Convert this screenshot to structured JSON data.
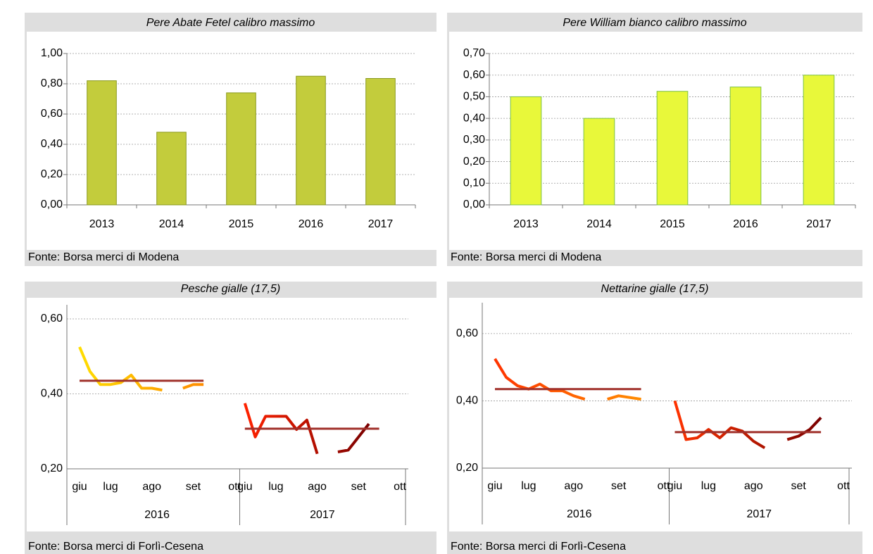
{
  "chart_data": [
    {
      "type": "bar",
      "title": "Pere Abate Fetel calibro massimo",
      "source": "Fonte: Borsa merci di Modena",
      "categories": [
        "2013",
        "2014",
        "2015",
        "2016",
        "2017"
      ],
      "values": [
        0.82,
        0.48,
        0.74,
        0.85,
        0.835
      ],
      "color": "#c3cc3c",
      "stroke": "#8a9a1e",
      "ylim": [
        0,
        1
      ],
      "yticks": [
        {
          "value": 0,
          "label": "0,00"
        },
        {
          "value": 0.2,
          "label": "0,20"
        },
        {
          "value": 0.4,
          "label": "0,40"
        },
        {
          "value": 0.6,
          "label": "0,60"
        },
        {
          "value": 0.8,
          "label": "0,80"
        },
        {
          "value": 1,
          "label": "1,00"
        }
      ],
      "grid": true
    },
    {
      "type": "bar",
      "title": "Pere William bianco calibro massimo",
      "source": "Fonte: Borsa merci di Modena",
      "categories": [
        "2013",
        "2014",
        "2015",
        "2016",
        "2017"
      ],
      "values": [
        0.5,
        0.4,
        0.525,
        0.545,
        0.6
      ],
      "color": "#e8f83a",
      "stroke": "#7cc043",
      "ylim": [
        0,
        0.7
      ],
      "yticks": [
        {
          "value": 0,
          "label": "0,00"
        },
        {
          "value": 0.1,
          "label": "0,10"
        },
        {
          "value": 0.2,
          "label": "0,20"
        },
        {
          "value": 0.3,
          "label": "0,30"
        },
        {
          "value": 0.4,
          "label": "0,40"
        },
        {
          "value": 0.5,
          "label": "0,50"
        },
        {
          "value": 0.6,
          "label": "0,60"
        },
        {
          "value": 0.7,
          "label": "0,70"
        }
      ],
      "grid": true
    },
    {
      "type": "line",
      "title": "Pesche gialle (17,5)",
      "source": "Fonte: Borsa merci di Forlì-Cesena",
      "categories": [
        "giu",
        null,
        null,
        "lug",
        null,
        null,
        null,
        "ago",
        null,
        null,
        null,
        "set",
        null,
        null,
        null,
        "ott",
        "giu",
        null,
        null,
        "lug",
        null,
        null,
        null,
        "ago",
        null,
        null,
        null,
        "set",
        null,
        null,
        null,
        "ott"
      ],
      "groups": [
        "2016",
        "2017"
      ],
      "series": [
        {
          "colors": [
            "#ffdd00",
            "#ff8c00"
          ],
          "values": [
            0.525,
            0.46,
            0.425,
            0.425,
            0.43,
            0.45,
            0.415,
            0.415,
            0.41,
            null,
            0.415,
            0.425,
            0.425,
            null,
            null,
            null,
            null,
            null,
            null,
            null,
            null,
            null,
            null,
            null,
            null,
            null,
            null,
            null,
            null,
            null,
            null,
            null
          ]
        },
        {
          "color": "#a0302a",
          "values": [
            0.435,
            0.435,
            0.435,
            0.435,
            0.435,
            0.435,
            0.435,
            0.435,
            0.435,
            0.435,
            0.435,
            0.435,
            0.435,
            null,
            null,
            null,
            null,
            null,
            null,
            null,
            null,
            null,
            null,
            null,
            null,
            null,
            null,
            null,
            null,
            null,
            null,
            null
          ]
        },
        {
          "colors": [
            "#ff2200",
            "#7a0000"
          ],
          "values": [
            null,
            null,
            null,
            null,
            null,
            null,
            null,
            null,
            null,
            null,
            null,
            null,
            null,
            null,
            null,
            null,
            0.375,
            0.285,
            0.34,
            0.34,
            0.34,
            0.305,
            0.33,
            0.24,
            null,
            0.245,
            0.25,
            0.285,
            0.32,
            null,
            null,
            null
          ]
        },
        {
          "color": "#a0302a",
          "values": [
            null,
            null,
            null,
            null,
            null,
            null,
            null,
            null,
            null,
            null,
            null,
            null,
            null,
            null,
            null,
            null,
            0.307,
            0.307,
            0.307,
            0.307,
            0.307,
            0.307,
            0.307,
            0.307,
            0.307,
            0.307,
            0.307,
            0.307,
            0.307,
            0.307,
            null,
            null
          ]
        }
      ],
      "ylim": [
        0.2,
        0.6
      ],
      "yticks": [
        {
          "value": 0.2,
          "label": "0,20"
        },
        {
          "value": 0.4,
          "label": "0,40"
        },
        {
          "value": 0.6,
          "label": "0,60"
        }
      ],
      "grid": true
    },
    {
      "type": "line",
      "title": "Nettarine gialle (17,5)",
      "source": "Fonte: Borsa merci di Forlì-Cesena",
      "categories": [
        "giu",
        null,
        null,
        "lug",
        null,
        null,
        null,
        "ago",
        null,
        null,
        null,
        "set",
        null,
        null,
        null,
        "ott",
        "giu",
        null,
        null,
        "lug",
        null,
        null,
        null,
        "ago",
        null,
        null,
        null,
        "set",
        null,
        null,
        null,
        "ott"
      ],
      "groups": [
        "2016",
        "2017"
      ],
      "series": [
        {
          "colors": [
            "#ff3300",
            "#ff8c00"
          ],
          "values": [
            0.525,
            0.47,
            0.445,
            0.435,
            0.45,
            0.43,
            0.43,
            0.415,
            0.405,
            null,
            0.405,
            0.415,
            0.41,
            0.405,
            null,
            null,
            null,
            null,
            null,
            null,
            null,
            null,
            null,
            null,
            null,
            null,
            null,
            null,
            null,
            null,
            null,
            null
          ]
        },
        {
          "color": "#a0302a",
          "values": [
            0.435,
            0.435,
            0.435,
            0.435,
            0.435,
            0.435,
            0.435,
            0.435,
            0.435,
            0.435,
            0.435,
            0.435,
            0.435,
            0.435,
            null,
            null,
            null,
            null,
            null,
            null,
            null,
            null,
            null,
            null,
            null,
            null,
            null,
            null,
            null,
            null,
            null,
            null
          ]
        },
        {
          "colors": [
            "#ff3300",
            "#7a0000"
          ],
          "values": [
            null,
            null,
            null,
            null,
            null,
            null,
            null,
            null,
            null,
            null,
            null,
            null,
            null,
            null,
            null,
            null,
            0.4,
            0.285,
            0.29,
            0.315,
            0.29,
            0.32,
            0.31,
            0.28,
            0.26,
            null,
            0.285,
            0.295,
            0.315,
            0.35,
            null,
            null
          ]
        },
        {
          "color": "#a0302a",
          "values": [
            null,
            null,
            null,
            null,
            null,
            null,
            null,
            null,
            null,
            null,
            null,
            null,
            null,
            null,
            null,
            null,
            0.307,
            0.307,
            0.307,
            0.307,
            0.307,
            0.307,
            0.307,
            0.307,
            0.307,
            0.307,
            0.307,
            0.307,
            0.307,
            0.307,
            null,
            null
          ]
        }
      ],
      "ylim": [
        0.2,
        0.65
      ],
      "yticks": [
        {
          "value": 0.2,
          "label": "0,20"
        },
        {
          "value": 0.4,
          "label": "0,40"
        },
        {
          "value": 0.6,
          "label": "0,60"
        }
      ],
      "grid": true
    }
  ]
}
